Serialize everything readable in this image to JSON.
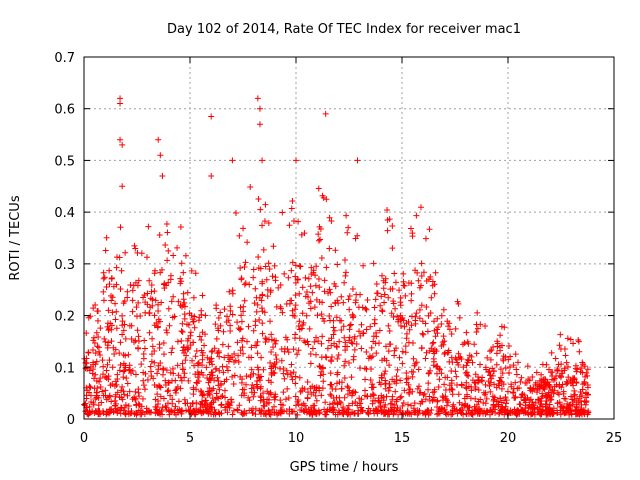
{
  "chart_data": {
    "type": "scatter",
    "title": "Day 102 of 2014, Rate Of TEC Index for receiver mac1",
    "xlabel": "GPS time / hours",
    "ylabel": "ROTI / TECUs",
    "xlim": [
      0,
      25
    ],
    "ylim": [
      0,
      0.7
    ],
    "x_ticks": [
      0,
      5,
      10,
      15,
      20,
      25
    ],
    "y_ticks": [
      0,
      0.1,
      0.2,
      0.3,
      0.4,
      0.5,
      0.6,
      0.7
    ],
    "x_tick_labels": [
      "0",
      "5",
      "10",
      "15",
      "20",
      "25"
    ],
    "y_tick_labels": [
      "0",
      "0.1",
      "0.2",
      "0.3",
      "0.4",
      "0.5",
      "0.6",
      "0.7"
    ],
    "grid": true,
    "marker": "plus",
    "color": "#ff0000",
    "series": [
      {
        "name": "ROTI mac1",
        "envelope_hours": [
          0,
          0.5,
          1,
          1.5,
          2,
          2.5,
          3,
          3.5,
          4,
          4.5,
          5,
          5.5,
          6,
          6.5,
          7,
          7.5,
          8,
          8.5,
          9,
          9.5,
          10,
          10.5,
          11,
          11.5,
          12,
          12.5,
          13,
          13.5,
          14,
          14.5,
          15,
          15.5,
          16,
          16.5,
          17,
          17.5,
          18,
          18.5,
          19,
          19.5,
          20,
          20.5,
          21,
          21.5,
          22,
          22.5,
          23,
          23.5,
          23.8
        ],
        "envelope_typical_max": [
          0.13,
          0.16,
          0.25,
          0.3,
          0.3,
          0.27,
          0.27,
          0.3,
          0.28,
          0.3,
          0.22,
          0.2,
          0.12,
          0.2,
          0.28,
          0.3,
          0.33,
          0.32,
          0.28,
          0.3,
          0.32,
          0.3,
          0.33,
          0.3,
          0.25,
          0.3,
          0.28,
          0.18,
          0.3,
          0.3,
          0.28,
          0.3,
          0.3,
          0.27,
          0.2,
          0.17,
          0.15,
          0.15,
          0.13,
          0.15,
          0.12,
          0.09,
          0.08,
          0.07,
          0.09,
          0.12,
          0.11,
          0.11,
          0.1
        ],
        "peaks_x": [
          1.7,
          1.7,
          1.7,
          1.8,
          1.8,
          3.5,
          3.6,
          3.7,
          6.0,
          6.0,
          7.0,
          8.2,
          8.3,
          8.3,
          8.4,
          10.0,
          11.4,
          12.9
        ],
        "peaks_y": [
          0.62,
          0.61,
          0.54,
          0.53,
          0.45,
          0.54,
          0.51,
          0.47,
          0.585,
          0.47,
          0.5,
          0.62,
          0.6,
          0.57,
          0.5,
          0.5,
          0.59,
          0.5
        ]
      }
    ]
  }
}
